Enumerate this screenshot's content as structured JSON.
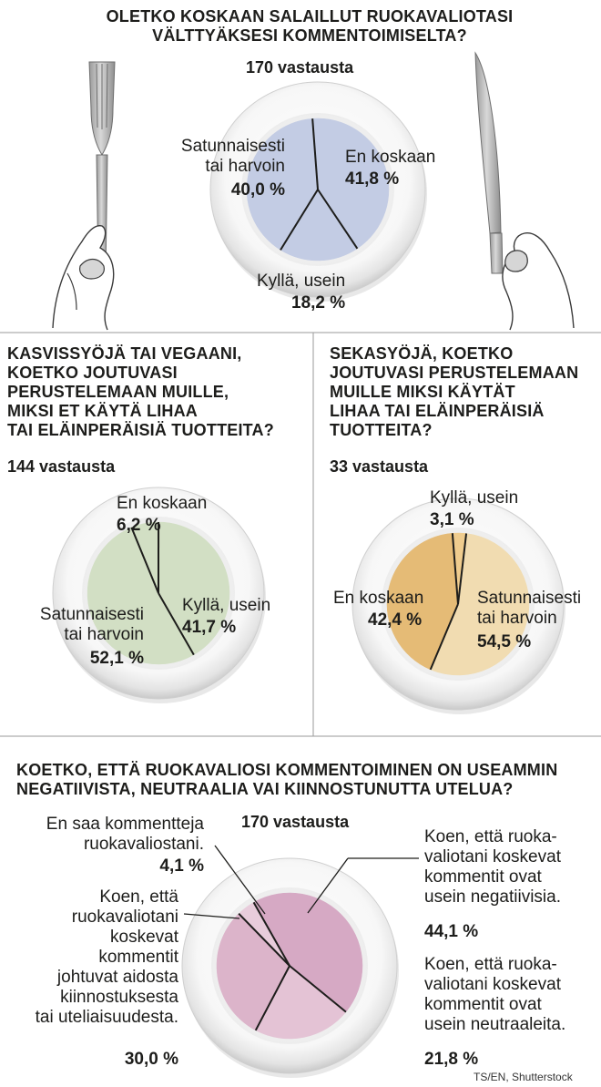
{
  "credit": "TS/EN, Shutterstock",
  "chart_data": [
    {
      "type": "pie",
      "title": "OLETKO KOSKAAN SALAILLUT RUOKAVALIOTASI\nVÄLTTYÄKSESI  KOMMENTOIMISELTA?",
      "responses": "170 vastausta",
      "color": "#c3cce4",
      "slices": [
        {
          "label": "En koskaan",
          "value": 41.8,
          "value_text": "41,8 %"
        },
        {
          "label": "Kyllä, usein",
          "value": 18.2,
          "value_text": "18,2 %"
        },
        {
          "label": "Satunnaisesti\ntai harvoin",
          "value": 40.0,
          "value_text": "40,0 %"
        }
      ]
    },
    {
      "type": "pie",
      "title": "KASVISSYÖJÄ TAI VEGAANI,\nKOETKO JOUTUVASI\nPERUSTELEMAAN MUILLE,\nMIKSI ET KÄYTÄ LIHAA\nTAI ELÄINPERÄISIÄ TUOTTEITA?",
      "responses": "144 vastausta",
      "color": "#d2dfc4",
      "slices": [
        {
          "label": "En koskaan",
          "value": 6.2,
          "value_text": "6,2 %"
        },
        {
          "label": "Kyllä, usein",
          "value": 41.7,
          "value_text": "41,7 %"
        },
        {
          "label": "Satunnaisesti\ntai harvoin",
          "value": 52.1,
          "value_text": "52,1 %"
        }
      ]
    },
    {
      "type": "pie",
      "title": "SEKASYÖJÄ, KOETKO\nJOUTUVASI PERUSTELEMAAN\nMUILLE MIKSI KÄYTÄT\nLIHAA TAI ELÄINPERÄISIÄ\nTUOTTEITA?",
      "responses": "33 vastausta",
      "slices": [
        {
          "label": "Kyllä, usein",
          "value": 3.1,
          "value_text": "3,1 %",
          "color": "#efcc8e"
        },
        {
          "label": "Satunnaisesti\ntai harvoin",
          "value": 54.5,
          "value_text": "54,5 %",
          "color": "#f1dcb1"
        },
        {
          "label": "En koskaan",
          "value": 42.4,
          "value_text": "42,4 %",
          "color": "#e5bb76"
        }
      ]
    },
    {
      "type": "pie",
      "title": "KOETKO, ETTÄ RUOKAVALIOSI KOMMENTOIMINEN ON USEAMMIN\nNEGATIIVISTA, NEUTRAALIA VAI KIINNOSTUNUTTA UTELUA?",
      "responses": "170 vastausta",
      "slices": [
        {
          "label": "Koen, että ruoka-\nvaliotani koskevat\nkommentit ovat\nusein negatiivisia.",
          "value": 44.1,
          "value_text": "44,1 %",
          "color": "#d6a9c4"
        },
        {
          "label": "Koen, että ruoka-\nvaliotani koskevat\nkommentit ovat\nusein neutraaleita.",
          "value": 21.8,
          "value_text": "21,8 %",
          "color": "#e4c3d5"
        },
        {
          "label": "Koen, että\nruokavaliotani\nkoskevat\nkommentit\njohtuvat aidosta\nkiinnostuksesta\ntai uteliaisuudesta.",
          "value": 30.0,
          "value_text": "30,0 %",
          "color": "#dcb4ca"
        },
        {
          "label": "En saa kommentteja\nruokavaliostani.",
          "value": 4.1,
          "value_text": "4,1 %",
          "color": "#e8ccdb"
        }
      ]
    }
  ]
}
